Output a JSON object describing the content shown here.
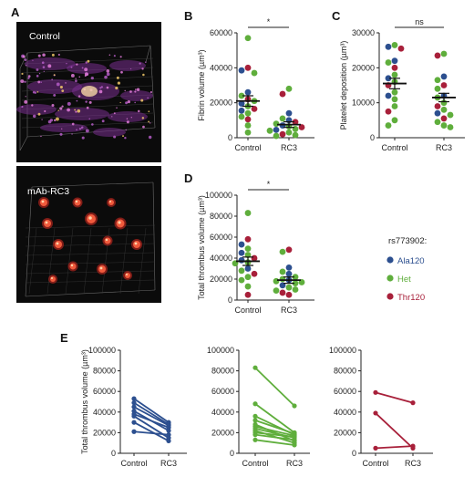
{
  "panels": {
    "A": {
      "letter": "A",
      "top_label": "Control",
      "bottom_label": "mAb-RC3",
      "background": "#0b0b0b"
    },
    "B": {
      "letter": "B"
    },
    "C": {
      "letter": "C"
    },
    "D": {
      "letter": "D"
    },
    "E": {
      "letter": "E"
    }
  },
  "legend": {
    "title": "rs773902:",
    "items": [
      {
        "label": "Ala120",
        "color": "#2c4f8f"
      },
      {
        "label": "Het",
        "color": "#5fae3c"
      },
      {
        "label": "Thr120",
        "color": "#a8203a"
      }
    ]
  },
  "colors": {
    "Ala120": "#2c4f8f",
    "Het": "#5fae3c",
    "Thr120": "#a8203a",
    "mean_bar": "#111111"
  },
  "chart_data": [
    {
      "id": "B",
      "type": "scatter",
      "ylabel": "Fibrin volume (µm³)",
      "categories": [
        "Control",
        "RC3"
      ],
      "ylim": [
        0,
        60000
      ],
      "yticks": [
        0,
        20000,
        40000,
        60000
      ],
      "significance": "*",
      "mean": [
        21000,
        7500
      ],
      "sem": [
        3000,
        1600
      ],
      "points": {
        "Control": [
          {
            "y": 57000,
            "g": "Het"
          },
          {
            "y": 40000,
            "g": "Thr120"
          },
          {
            "y": 38500,
            "g": "Ala120"
          },
          {
            "y": 37000,
            "g": "Het"
          },
          {
            "y": 26000,
            "g": "Ala120"
          },
          {
            "y": 24000,
            "g": "Het"
          },
          {
            "y": 22000,
            "g": "Thr120"
          },
          {
            "y": 21000,
            "g": "Het"
          },
          {
            "y": 19500,
            "g": "Ala120"
          },
          {
            "y": 18000,
            "g": "Het"
          },
          {
            "y": 16500,
            "g": "Thr120"
          },
          {
            "y": 15500,
            "g": "Ala120"
          },
          {
            "y": 14000,
            "g": "Het"
          },
          {
            "y": 12000,
            "g": "Het"
          },
          {
            "y": 10500,
            "g": "Thr120"
          },
          {
            "y": 7000,
            "g": "Het"
          },
          {
            "y": 3000,
            "g": "Het"
          }
        ],
        "RC3": [
          {
            "y": 28000,
            "g": "Het"
          },
          {
            "y": 25000,
            "g": "Thr120"
          },
          {
            "y": 14000,
            "g": "Ala120"
          },
          {
            "y": 11000,
            "g": "Het"
          },
          {
            "y": 10000,
            "g": "Ala120"
          },
          {
            "y": 9000,
            "g": "Thr120"
          },
          {
            "y": 8000,
            "g": "Het"
          },
          {
            "y": 7000,
            "g": "Ala120"
          },
          {
            "y": 6500,
            "g": "Het"
          },
          {
            "y": 6000,
            "g": "Thr120"
          },
          {
            "y": 5000,
            "g": "Het"
          },
          {
            "y": 4500,
            "g": "Ala120"
          },
          {
            "y": 4000,
            "g": "Het"
          },
          {
            "y": 3000,
            "g": "Het"
          },
          {
            "y": 2000,
            "g": "Thr120"
          },
          {
            "y": 1500,
            "g": "Het"
          },
          {
            "y": 1000,
            "g": "Het"
          }
        ]
      }
    },
    {
      "id": "C",
      "type": "scatter",
      "ylabel": "Platelet deposition (µm³)",
      "categories": [
        "Control",
        "RC3"
      ],
      "ylim": [
        0,
        30000
      ],
      "yticks": [
        0,
        10000,
        20000,
        30000
      ],
      "significance": "ns",
      "mean": [
        15500,
        11500
      ],
      "sem": [
        1500,
        1200
      ],
      "points": {
        "Control": [
          {
            "y": 26500,
            "g": "Het"
          },
          {
            "y": 26000,
            "g": "Ala120"
          },
          {
            "y": 25500,
            "g": "Thr120"
          },
          {
            "y": 22000,
            "g": "Ala120"
          },
          {
            "y": 21500,
            "g": "Het"
          },
          {
            "y": 20000,
            "g": "Thr120"
          },
          {
            "y": 18000,
            "g": "Het"
          },
          {
            "y": 17000,
            "g": "Ala120"
          },
          {
            "y": 16000,
            "g": "Het"
          },
          {
            "y": 15000,
            "g": "Thr120"
          },
          {
            "y": 13000,
            "g": "Het"
          },
          {
            "y": 12000,
            "g": "Ala120"
          },
          {
            "y": 11000,
            "g": "Het"
          },
          {
            "y": 9000,
            "g": "Het"
          },
          {
            "y": 7500,
            "g": "Thr120"
          },
          {
            "y": 5000,
            "g": "Het"
          },
          {
            "y": 3500,
            "g": "Het"
          }
        ],
        "RC3": [
          {
            "y": 24000,
            "g": "Het"
          },
          {
            "y": 23500,
            "g": "Thr120"
          },
          {
            "y": 17500,
            "g": "Ala120"
          },
          {
            "y": 16500,
            "g": "Het"
          },
          {
            "y": 15000,
            "g": "Thr120"
          },
          {
            "y": 14000,
            "g": "Het"
          },
          {
            "y": 12000,
            "g": "Ala120"
          },
          {
            "y": 11500,
            "g": "Het"
          },
          {
            "y": 10000,
            "g": "Het"
          },
          {
            "y": 9000,
            "g": "Thr120"
          },
          {
            "y": 8000,
            "g": "Het"
          },
          {
            "y": 7000,
            "g": "Ala120"
          },
          {
            "y": 6500,
            "g": "Het"
          },
          {
            "y": 5500,
            "g": "Thr120"
          },
          {
            "y": 4500,
            "g": "Het"
          },
          {
            "y": 3500,
            "g": "Het"
          },
          {
            "y": 3000,
            "g": "Het"
          }
        ]
      }
    },
    {
      "id": "D",
      "type": "scatter",
      "ylabel": "Total thrombus volume (µm³)",
      "categories": [
        "Control",
        "RC3"
      ],
      "ylim": [
        0,
        100000
      ],
      "yticks": [
        0,
        20000,
        40000,
        60000,
        80000,
        100000
      ],
      "significance": "*",
      "mean": [
        37000,
        19000
      ],
      "sem": [
        4000,
        3000
      ],
      "points": {
        "Control": [
          {
            "y": 83000,
            "g": "Het"
          },
          {
            "y": 58000,
            "g": "Thr120"
          },
          {
            "y": 53000,
            "g": "Ala120"
          },
          {
            "y": 49000,
            "g": "Het"
          },
          {
            "y": 45000,
            "g": "Ala120"
          },
          {
            "y": 43000,
            "g": "Het"
          },
          {
            "y": 40000,
            "g": "Thr120"
          },
          {
            "y": 38000,
            "g": "Ala120"
          },
          {
            "y": 36000,
            "g": "Het"
          },
          {
            "y": 35000,
            "g": "Het"
          },
          {
            "y": 30000,
            "g": "Ala120"
          },
          {
            "y": 28000,
            "g": "Het"
          },
          {
            "y": 25000,
            "g": "Thr120"
          },
          {
            "y": 22000,
            "g": "Het"
          },
          {
            "y": 19000,
            "g": "Het"
          },
          {
            "y": 13000,
            "g": "Het"
          },
          {
            "y": 5000,
            "g": "Thr120"
          }
        ],
        "RC3": [
          {
            "y": 48000,
            "g": "Thr120"
          },
          {
            "y": 46000,
            "g": "Het"
          },
          {
            "y": 31000,
            "g": "Ala120"
          },
          {
            "y": 27000,
            "g": "Het"
          },
          {
            "y": 25000,
            "g": "Ala120"
          },
          {
            "y": 22000,
            "g": "Het"
          },
          {
            "y": 20000,
            "g": "Het"
          },
          {
            "y": 19000,
            "g": "Ala120"
          },
          {
            "y": 18000,
            "g": "Het"
          },
          {
            "y": 17000,
            "g": "Het"
          },
          {
            "y": 16000,
            "g": "Het"
          },
          {
            "y": 14000,
            "g": "Ala120"
          },
          {
            "y": 12000,
            "g": "Het"
          },
          {
            "y": 10000,
            "g": "Het"
          },
          {
            "y": 9000,
            "g": "Het"
          },
          {
            "y": 7000,
            "g": "Thr120"
          },
          {
            "y": 5000,
            "g": "Thr120"
          }
        ]
      }
    },
    {
      "id": "E1",
      "type": "line",
      "group": "Ala120",
      "ylabel": "Total thrombus volume (µm³)",
      "categories": [
        "Control",
        "RC3"
      ],
      "ylim": [
        0,
        100000
      ],
      "yticks": [
        0,
        20000,
        40000,
        60000,
        80000,
        100000
      ],
      "pairs": [
        [
          53000,
          30000
        ],
        [
          49000,
          28000
        ],
        [
          45000,
          27000
        ],
        [
          41000,
          22000
        ],
        [
          38000,
          25000
        ],
        [
          36000,
          15000
        ],
        [
          30000,
          12000
        ],
        [
          21000,
          18000
        ]
      ]
    },
    {
      "id": "E2",
      "type": "line",
      "group": "Het",
      "categories": [
        "Control",
        "RC3"
      ],
      "ylim": [
        0,
        100000
      ],
      "yticks": [
        0,
        20000,
        40000,
        60000,
        80000,
        100000
      ],
      "pairs": [
        [
          83000,
          46000
        ],
        [
          48000,
          20000
        ],
        [
          36000,
          18000
        ],
        [
          32000,
          19000
        ],
        [
          28000,
          12000
        ],
        [
          26000,
          17000
        ],
        [
          24000,
          15000
        ],
        [
          22000,
          10000
        ],
        [
          20000,
          16000
        ],
        [
          18000,
          13000
        ],
        [
          13000,
          8000
        ]
      ]
    },
    {
      "id": "E3",
      "type": "line",
      "group": "Thr120",
      "categories": [
        "Control",
        "RC3"
      ],
      "ylim": [
        0,
        100000
      ],
      "yticks": [
        0,
        20000,
        40000,
        60000,
        80000,
        100000
      ],
      "pairs": [
        [
          59000,
          49000
        ],
        [
          39000,
          5000
        ],
        [
          5000,
          7000
        ]
      ]
    }
  ]
}
